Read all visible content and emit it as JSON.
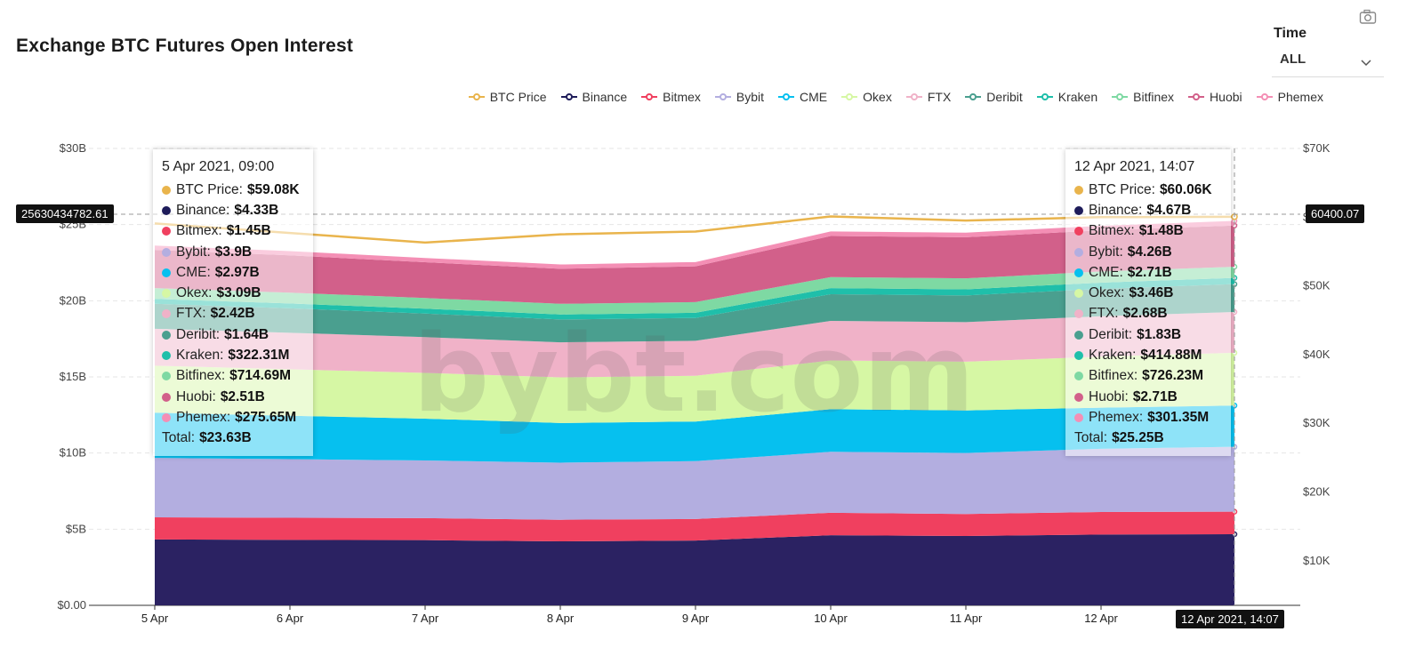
{
  "header": {
    "title": "Exchange BTC Futures Open Interest"
  },
  "time": {
    "label": "Time",
    "value": "ALL"
  },
  "icons": {
    "camera": "camera-icon",
    "chevron": "chevron-down-icon"
  },
  "watermark": "bybt.com",
  "legend": [
    {
      "name": "BTC Price",
      "color": "#e9b44c"
    },
    {
      "name": "Binance",
      "color": "#1e1c5a"
    },
    {
      "name": "Bitmex",
      "color": "#f0405f"
    },
    {
      "name": "Bybit",
      "color": "#b3aee0"
    },
    {
      "name": "CME",
      "color": "#06c0ef"
    },
    {
      "name": "Okex",
      "color": "#d6f7a4"
    },
    {
      "name": "FTX",
      "color": "#f0b2c8"
    },
    {
      "name": "Deribit",
      "color": "#4a9f8f"
    },
    {
      "name": "Kraken",
      "color": "#1fbfaa"
    },
    {
      "name": "Bitfinex",
      "color": "#7ed9a3"
    },
    {
      "name": "Huobi",
      "color": "#d2608a"
    },
    {
      "name": "Phemex",
      "color": "#f48fb5"
    }
  ],
  "crosshair": {
    "left_value": "25630434782.61",
    "right_value": "60400.07",
    "x_value": "12 Apr 2021, 14:07"
  },
  "tooltips": [
    {
      "date": "5 Apr 2021, 09:00",
      "rows": [
        {
          "name": "BTC Price",
          "value": "$59.08K",
          "color": "#e9b44c"
        },
        {
          "name": "Binance",
          "value": "$4.33B",
          "color": "#1e1c5a"
        },
        {
          "name": "Bitmex",
          "value": "$1.45B",
          "color": "#f0405f"
        },
        {
          "name": "Bybit",
          "value": "$3.9B",
          "color": "#b3aee0"
        },
        {
          "name": "CME",
          "value": "$2.97B",
          "color": "#06c0ef"
        },
        {
          "name": "Okex",
          "value": "$3.09B",
          "color": "#d6f7a4"
        },
        {
          "name": "FTX",
          "value": "$2.42B",
          "color": "#f0b2c8"
        },
        {
          "name": "Deribit",
          "value": "$1.64B",
          "color": "#4a9f8f"
        },
        {
          "name": "Kraken",
          "value": "$322.31M",
          "color": "#1fbfaa"
        },
        {
          "name": "Bitfinex",
          "value": "$714.69M",
          "color": "#7ed9a3"
        },
        {
          "name": "Huobi",
          "value": "$2.51B",
          "color": "#d2608a"
        },
        {
          "name": "Phemex",
          "value": "$275.65M",
          "color": "#f48fb5"
        }
      ],
      "total": "$23.63B"
    },
    {
      "date": "12 Apr 2021, 14:07",
      "rows": [
        {
          "name": "BTC Price",
          "value": "$60.06K",
          "color": "#e9b44c"
        },
        {
          "name": "Binance",
          "value": "$4.67B",
          "color": "#1e1c5a"
        },
        {
          "name": "Bitmex",
          "value": "$1.48B",
          "color": "#f0405f"
        },
        {
          "name": "Bybit",
          "value": "$4.26B",
          "color": "#b3aee0"
        },
        {
          "name": "CME",
          "value": "$2.71B",
          "color": "#06c0ef"
        },
        {
          "name": "Okex",
          "value": "$3.46B",
          "color": "#d6f7a4"
        },
        {
          "name": "FTX",
          "value": "$2.68B",
          "color": "#f0b2c8"
        },
        {
          "name": "Deribit",
          "value": "$1.83B",
          "color": "#4a9f8f"
        },
        {
          "name": "Kraken",
          "value": "$414.88M",
          "color": "#1fbfaa"
        },
        {
          "name": "Bitfinex",
          "value": "$726.23M",
          "color": "#7ed9a3"
        },
        {
          "name": "Huobi",
          "value": "$2.71B",
          "color": "#d2608a"
        },
        {
          "name": "Phemex",
          "value": "$301.35M",
          "color": "#f48fb5"
        }
      ],
      "total": "$25.25B"
    }
  ],
  "chart_data": {
    "type": "area",
    "title": "Exchange BTC Futures Open Interest",
    "stacked": true,
    "x": [
      "5 Apr",
      "6 Apr",
      "7 Apr",
      "8 Apr",
      "9 Apr",
      "10 Apr",
      "11 Apr",
      "12 Apr",
      "12 Apr 2021, 14:07"
    ],
    "x_ticks": [
      "5 Apr",
      "6 Apr",
      "7 Apr",
      "8 Apr",
      "9 Apr",
      "10 Apr",
      "11 Apr",
      "12 Apr"
    ],
    "y_left": {
      "ticks": [
        "$0.00",
        "$5B",
        "$10B",
        "$15B",
        "$20B",
        "$25B",
        "$30B"
      ],
      "lim": [
        0,
        30
      ]
    },
    "y_right": {
      "ticks": [
        "$10K",
        "$20K",
        "$30K",
        "$40K",
        "$50K",
        "$60K",
        "$70K"
      ],
      "lim": [
        3.5,
        70
      ]
    },
    "price_series": {
      "name": "BTC Price",
      "values": [
        59.08,
        57.7,
        56.3,
        57.5,
        57.9,
        60.1,
        59.5,
        60.0,
        60.06
      ]
    },
    "series": [
      {
        "name": "Binance",
        "color": "#2b2262",
        "values": [
          4.33,
          4.3,
          4.28,
          4.2,
          4.25,
          4.6,
          4.55,
          4.65,
          4.67
        ]
      },
      {
        "name": "Bitmex",
        "color": "#f0405f",
        "values": [
          1.45,
          1.45,
          1.45,
          1.42,
          1.42,
          1.48,
          1.45,
          1.48,
          1.48
        ]
      },
      {
        "name": "Bybit",
        "color": "#b3aee0",
        "values": [
          3.9,
          3.85,
          3.78,
          3.75,
          3.8,
          4.0,
          4.0,
          4.15,
          4.26
        ]
      },
      {
        "name": "CME",
        "color": "#06c0ef",
        "values": [
          2.97,
          2.85,
          2.75,
          2.6,
          2.6,
          2.8,
          2.8,
          2.7,
          2.71
        ]
      },
      {
        "name": "Okex",
        "color": "#d6f7a4",
        "values": [
          3.09,
          3.05,
          3.0,
          3.0,
          3.0,
          3.2,
          3.2,
          3.35,
          3.46
        ]
      },
      {
        "name": "FTX",
        "color": "#f0b2c8",
        "values": [
          2.42,
          2.4,
          2.35,
          2.3,
          2.3,
          2.6,
          2.6,
          2.65,
          2.68
        ]
      },
      {
        "name": "Deribit",
        "color": "#4a9f8f",
        "values": [
          1.64,
          1.6,
          1.55,
          1.5,
          1.5,
          1.75,
          1.75,
          1.8,
          1.83
        ]
      },
      {
        "name": "Kraken",
        "color": "#1fbfaa",
        "values": [
          0.32,
          0.32,
          0.32,
          0.33,
          0.34,
          0.4,
          0.4,
          0.41,
          0.41
        ]
      },
      {
        "name": "Bitfinex",
        "color": "#7ed9a3",
        "values": [
          0.71,
          0.71,
          0.7,
          0.7,
          0.7,
          0.72,
          0.72,
          0.73,
          0.73
        ]
      },
      {
        "name": "Huobi",
        "color": "#d2608a",
        "values": [
          2.51,
          2.45,
          2.35,
          2.3,
          2.35,
          2.7,
          2.7,
          2.7,
          2.71
        ]
      },
      {
        "name": "Phemex",
        "color": "#f48fb5",
        "values": [
          0.28,
          0.28,
          0.28,
          0.28,
          0.28,
          0.3,
          0.3,
          0.3,
          0.3
        ]
      }
    ],
    "grid": true,
    "legend_position": "top-right"
  }
}
